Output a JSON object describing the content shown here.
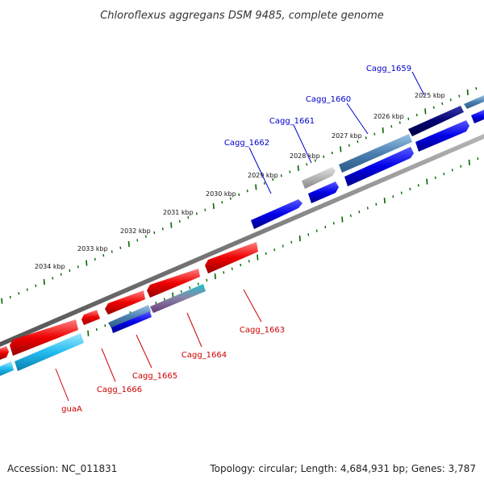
{
  "title": "Chloroflexus aggregans DSM 9485, complete genome",
  "footer": {
    "accession": "Accession: NC_011831",
    "summary": "Topology: circular; Length: 4,684,931 bp; Genes: 3,787"
  },
  "kbp_labels": [
    "2025 kbp",
    "2026 kbp",
    "2027 kbp",
    "2028 kbp",
    "2029 kbp",
    "2030 kbp",
    "2031 kbp",
    "2032 kbp",
    "2033 kbp",
    "2034 kbp"
  ],
  "gene_labels_top": [
    "Cagg_1659",
    "Cagg_1660",
    "Cagg_1661",
    "Cagg_1662"
  ],
  "gene_labels_bottom": [
    "Cagg_1663",
    "Cagg_1664",
    "Cagg_1665",
    "Cagg_1666",
    "guaA"
  ],
  "colors": {
    "forward": "#0000e8",
    "reverse": "#e80000",
    "backbone": "#7a7a7a",
    "ticks": "#006600",
    "cyan_feature": "#22bbee",
    "navy_feature": "#000070",
    "steel_feature": "#4a7fb0",
    "grey_feature": "#aaaaaa"
  }
}
